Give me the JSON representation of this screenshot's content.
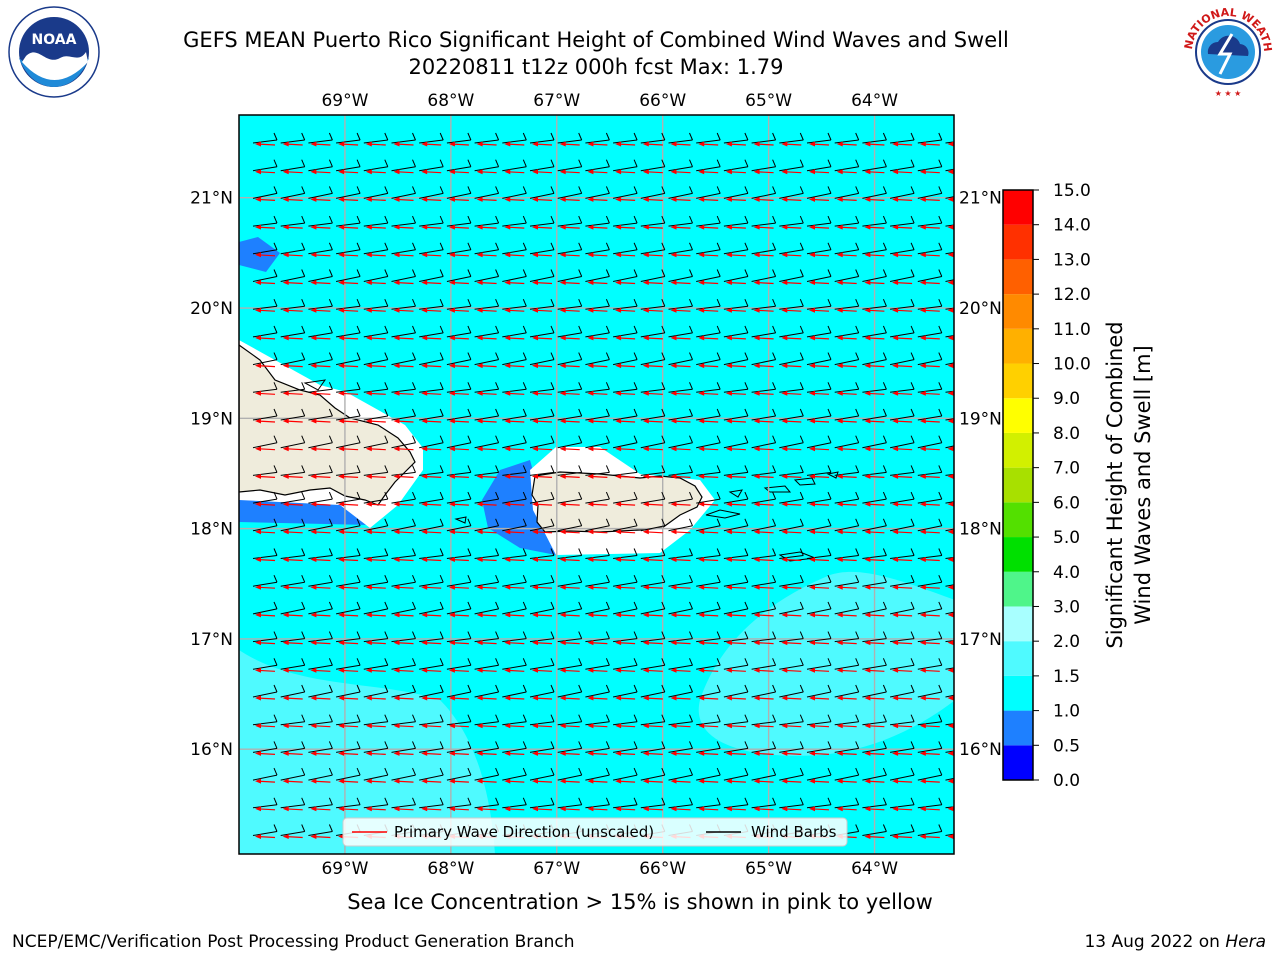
{
  "header": {
    "title_line1": "GEFS MEAN Puerto Rico Significant Height of Combined Wind Waves and Swell",
    "title_line2": "20220811 t12z 000h fcst   Max: 1.79"
  },
  "logos": {
    "left": {
      "name": "noaa-logo",
      "text": "NOAA",
      "ring_text": "NATIONAL OCEANIC AND ATMOSPHERIC ADMINISTRATION · U.S. DEPARTMENT OF COMMERCE"
    },
    "right": {
      "name": "nws-logo",
      "ring_text": "NATIONAL WEATHER SERVICE"
    }
  },
  "map": {
    "lon_range": [
      -70.0,
      -63.25
    ],
    "lat_range": [
      15.05,
      21.75
    ],
    "lon_ticks": [
      "69°W",
      "68°W",
      "67°W",
      "66°W",
      "65°W",
      "64°W"
    ],
    "lat_ticks": [
      "21°N",
      "20°N",
      "19°N",
      "18°N",
      "17°N",
      "16°N"
    ],
    "background_color": "#00ffff",
    "land_color": "#efecdc",
    "grid": true
  },
  "legend": {
    "wave_label": "Primary Wave Direction (unscaled)",
    "barb_label": "Wind Barbs",
    "wave_color": "#ff0000",
    "barb_color": "#000000"
  },
  "colorbar": {
    "label_line1": "Significant Height of Combined",
    "label_line2": "Wind Waves and Swell [m]",
    "ticks": [
      "0.0",
      "0.5",
      "1.0",
      "1.5",
      "2.0",
      "3.0",
      "4.0",
      "5.0",
      "6.0",
      "7.0",
      "8.0",
      "9.0",
      "10.0",
      "11.0",
      "12.0",
      "13.0",
      "14.0",
      "15.0"
    ],
    "colors": [
      "#0000ff",
      "#1e80ff",
      "#00ffff",
      "#4ffaff",
      "#a8ffff",
      "#4ff58a",
      "#00e000",
      "#53e000",
      "#a8e000",
      "#d2f000",
      "#ffff00",
      "#ffd000",
      "#ffb000",
      "#ff8a00",
      "#ff6000",
      "#ff3000",
      "#ff0000"
    ]
  },
  "caption": "Sea Ice Concentration > 15% is shown in pink to yellow",
  "footer": {
    "left": "NCEP/EMC/Verification Post Processing Product Generation Branch",
    "right_prefix": "13 Aug 2022 on ",
    "right_host": "Hera"
  }
}
